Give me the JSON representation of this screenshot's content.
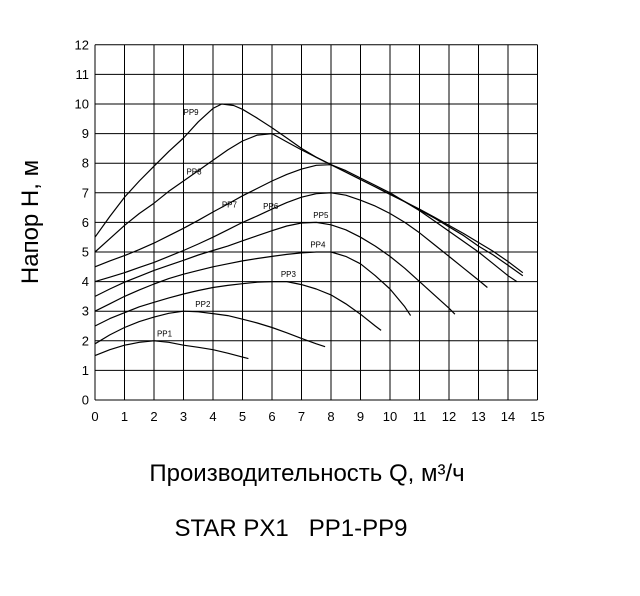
{
  "chart_data": {
    "type": "line",
    "title": "STAR PX1   PP1-PP9",
    "xlabel": "Производительность Q, м³/ч",
    "ylabel": "Напор H, м",
    "xlim": [
      0,
      15
    ],
    "ylim": [
      0,
      12
    ],
    "x_ticks": [
      "0",
      "1",
      "2",
      "3",
      "4",
      "5",
      "6",
      "7",
      "8",
      "9",
      "10",
      "11",
      "12",
      "13",
      "14",
      "15"
    ],
    "y_ticks": [
      "0",
      "1",
      "2",
      "3",
      "4",
      "5",
      "6",
      "7",
      "8",
      "9",
      "10",
      "11",
      "12"
    ],
    "grid": true,
    "legend": "none",
    "series": [
      {
        "name": "PP1",
        "label_at": [
          2.1,
          2.15
        ],
        "points": [
          [
            0,
            1.5
          ],
          [
            0.5,
            1.7
          ],
          [
            1,
            1.85
          ],
          [
            1.5,
            1.95
          ],
          [
            2,
            2.0
          ],
          [
            2.5,
            1.95
          ],
          [
            3,
            1.85
          ],
          [
            3.5,
            1.78
          ],
          [
            4,
            1.7
          ],
          [
            4.5,
            1.58
          ],
          [
            5,
            1.45
          ],
          [
            5.2,
            1.4
          ]
        ]
      },
      {
        "name": "PP2",
        "label_at": [
          3.4,
          3.15
        ],
        "points": [
          [
            0,
            1.9
          ],
          [
            0.5,
            2.2
          ],
          [
            1,
            2.45
          ],
          [
            1.5,
            2.65
          ],
          [
            2,
            2.8
          ],
          [
            2.5,
            2.93
          ],
          [
            3,
            3.0
          ],
          [
            3.5,
            2.98
          ],
          [
            4,
            2.92
          ],
          [
            4.5,
            2.85
          ],
          [
            5,
            2.73
          ],
          [
            5.5,
            2.6
          ],
          [
            6,
            2.45
          ],
          [
            6.5,
            2.27
          ],
          [
            7,
            2.08
          ],
          [
            7.5,
            1.9
          ],
          [
            7.8,
            1.8
          ]
        ]
      },
      {
        "name": "PP3",
        "label_at": [
          6.3,
          4.15
        ],
        "points": [
          [
            0,
            2.5
          ],
          [
            0.5,
            2.75
          ],
          [
            1,
            2.95
          ],
          [
            1.5,
            3.15
          ],
          [
            2,
            3.3
          ],
          [
            2.5,
            3.45
          ],
          [
            3,
            3.58
          ],
          [
            3.5,
            3.7
          ],
          [
            4,
            3.8
          ],
          [
            4.5,
            3.87
          ],
          [
            5,
            3.93
          ],
          [
            5.5,
            3.98
          ],
          [
            6,
            4.0
          ],
          [
            6.5,
            4.0
          ],
          [
            7,
            3.9
          ],
          [
            7.5,
            3.75
          ],
          [
            8,
            3.55
          ],
          [
            8.5,
            3.25
          ],
          [
            9,
            2.9
          ],
          [
            9.5,
            2.5
          ],
          [
            9.7,
            2.35
          ]
        ]
      },
      {
        "name": "PP4",
        "label_at": [
          7.3,
          5.15
        ],
        "points": [
          [
            0,
            3.0
          ],
          [
            0.5,
            3.25
          ],
          [
            1,
            3.5
          ],
          [
            1.5,
            3.72
          ],
          [
            2,
            3.92
          ],
          [
            2.5,
            4.1
          ],
          [
            3,
            4.25
          ],
          [
            3.5,
            4.38
          ],
          [
            4,
            4.5
          ],
          [
            4.5,
            4.6
          ],
          [
            5,
            4.7
          ],
          [
            5.5,
            4.78
          ],
          [
            6,
            4.85
          ],
          [
            6.5,
            4.92
          ],
          [
            7,
            4.97
          ],
          [
            7.5,
            5.0
          ],
          [
            8,
            5.0
          ],
          [
            8.5,
            4.85
          ],
          [
            9,
            4.6
          ],
          [
            9.5,
            4.2
          ],
          [
            10,
            3.75
          ],
          [
            10.5,
            3.15
          ],
          [
            10.7,
            2.85
          ]
        ]
      },
      {
        "name": "PP5",
        "label_at": [
          7.4,
          6.15
        ],
        "points": [
          [
            0,
            3.5
          ],
          [
            0.5,
            3.75
          ],
          [
            1,
            3.98
          ],
          [
            1.5,
            4.18
          ],
          [
            2,
            4.38
          ],
          [
            2.5,
            4.55
          ],
          [
            3,
            4.72
          ],
          [
            3.5,
            4.9
          ],
          [
            4,
            5.05
          ],
          [
            4.5,
            5.2
          ],
          [
            5,
            5.38
          ],
          [
            5.5,
            5.55
          ],
          [
            6,
            5.72
          ],
          [
            6.5,
            5.88
          ],
          [
            7,
            5.98
          ],
          [
            7.5,
            6.0
          ],
          [
            8,
            5.92
          ],
          [
            8.5,
            5.75
          ],
          [
            9,
            5.5
          ],
          [
            9.5,
            5.2
          ],
          [
            10,
            4.85
          ],
          [
            10.5,
            4.45
          ],
          [
            11,
            4.0
          ],
          [
            11.5,
            3.55
          ],
          [
            12,
            3.1
          ],
          [
            12.2,
            2.9
          ]
        ]
      },
      {
        "name": "PP6",
        "label_at": [
          5.7,
          6.45
        ],
        "points": [
          [
            0,
            4.0
          ],
          [
            0.5,
            4.15
          ],
          [
            1,
            4.3
          ],
          [
            1.5,
            4.48
          ],
          [
            2,
            4.65
          ],
          [
            2.5,
            4.85
          ],
          [
            3,
            5.05
          ],
          [
            3.5,
            5.27
          ],
          [
            4,
            5.5
          ],
          [
            4.5,
            5.75
          ],
          [
            5,
            6.0
          ],
          [
            5.5,
            6.22
          ],
          [
            6,
            6.45
          ],
          [
            6.5,
            6.67
          ],
          [
            7,
            6.85
          ],
          [
            7.5,
            6.97
          ],
          [
            8,
            7.0
          ],
          [
            8.5,
            6.92
          ],
          [
            9,
            6.75
          ],
          [
            9.5,
            6.55
          ],
          [
            10,
            6.3
          ],
          [
            10.5,
            6.0
          ],
          [
            11,
            5.65
          ],
          [
            11.5,
            5.25
          ],
          [
            12,
            4.85
          ],
          [
            12.5,
            4.45
          ],
          [
            13,
            4.05
          ],
          [
            13.3,
            3.8
          ]
        ]
      },
      {
        "name": "PP7",
        "label_at": [
          4.3,
          6.5
        ],
        "points": [
          [
            0,
            4.5
          ],
          [
            0.5,
            4.7
          ],
          [
            1,
            4.88
          ],
          [
            1.5,
            5.08
          ],
          [
            2,
            5.3
          ],
          [
            2.5,
            5.55
          ],
          [
            3,
            5.8
          ],
          [
            3.5,
            6.07
          ],
          [
            4,
            6.35
          ],
          [
            4.5,
            6.62
          ],
          [
            5,
            6.9
          ],
          [
            5.5,
            7.15
          ],
          [
            6,
            7.4
          ],
          [
            6.5,
            7.62
          ],
          [
            7,
            7.8
          ],
          [
            7.5,
            7.93
          ],
          [
            8,
            7.95
          ],
          [
            8.5,
            7.75
          ],
          [
            9,
            7.5
          ],
          [
            9.5,
            7.25
          ],
          [
            10,
            7.0
          ],
          [
            10.5,
            6.7
          ],
          [
            11,
            6.4
          ],
          [
            11.5,
            6.05
          ],
          [
            12,
            5.7
          ],
          [
            12.5,
            5.35
          ],
          [
            13,
            5.0
          ],
          [
            13.5,
            4.6
          ],
          [
            14,
            4.2
          ],
          [
            14.3,
            4.0
          ]
        ]
      },
      {
        "name": "PP8",
        "label_at": [
          3.1,
          7.62
        ],
        "points": [
          [
            0,
            5.0
          ],
          [
            0.5,
            5.45
          ],
          [
            1,
            5.9
          ],
          [
            1.5,
            6.3
          ],
          [
            2,
            6.65
          ],
          [
            2.5,
            7.05
          ],
          [
            3,
            7.4
          ],
          [
            3.5,
            7.75
          ],
          [
            4,
            8.1
          ],
          [
            4.5,
            8.45
          ],
          [
            5,
            8.75
          ],
          [
            5.5,
            8.95
          ],
          [
            6,
            9.0
          ],
          [
            6.5,
            8.72
          ],
          [
            7,
            8.45
          ],
          [
            7.5,
            8.2
          ],
          [
            8,
            7.95
          ],
          [
            8.5,
            7.7
          ],
          [
            9,
            7.45
          ],
          [
            9.5,
            7.2
          ],
          [
            10,
            6.95
          ],
          [
            10.5,
            6.7
          ],
          [
            11,
            6.42
          ],
          [
            11.5,
            6.15
          ],
          [
            12,
            5.85
          ],
          [
            12.5,
            5.55
          ],
          [
            13,
            5.2
          ],
          [
            13.5,
            4.9
          ],
          [
            14,
            4.55
          ],
          [
            14.5,
            4.2
          ]
        ]
      },
      {
        "name": "PP9",
        "label_at": [
          3.0,
          9.62
        ],
        "points": [
          [
            0,
            5.5
          ],
          [
            0.5,
            6.2
          ],
          [
            1,
            6.85
          ],
          [
            1.5,
            7.4
          ],
          [
            2,
            7.9
          ],
          [
            2.5,
            8.4
          ],
          [
            3,
            8.85
          ],
          [
            3.5,
            9.4
          ],
          [
            4,
            9.85
          ],
          [
            4.3,
            10.0
          ],
          [
            4.7,
            9.95
          ],
          [
            5,
            9.82
          ],
          [
            5.5,
            9.52
          ],
          [
            6,
            9.2
          ],
          [
            6.5,
            8.85
          ],
          [
            7,
            8.5
          ],
          [
            7.5,
            8.2
          ],
          [
            8,
            7.95
          ],
          [
            8.5,
            7.7
          ],
          [
            9,
            7.45
          ],
          [
            9.5,
            7.2
          ],
          [
            10,
            6.95
          ],
          [
            10.5,
            6.7
          ],
          [
            11,
            6.45
          ],
          [
            11.5,
            6.18
          ],
          [
            12,
            5.9
          ],
          [
            12.5,
            5.62
          ],
          [
            13,
            5.32
          ],
          [
            13.5,
            5.02
          ],
          [
            14,
            4.68
          ],
          [
            14.5,
            4.3
          ]
        ]
      }
    ]
  }
}
